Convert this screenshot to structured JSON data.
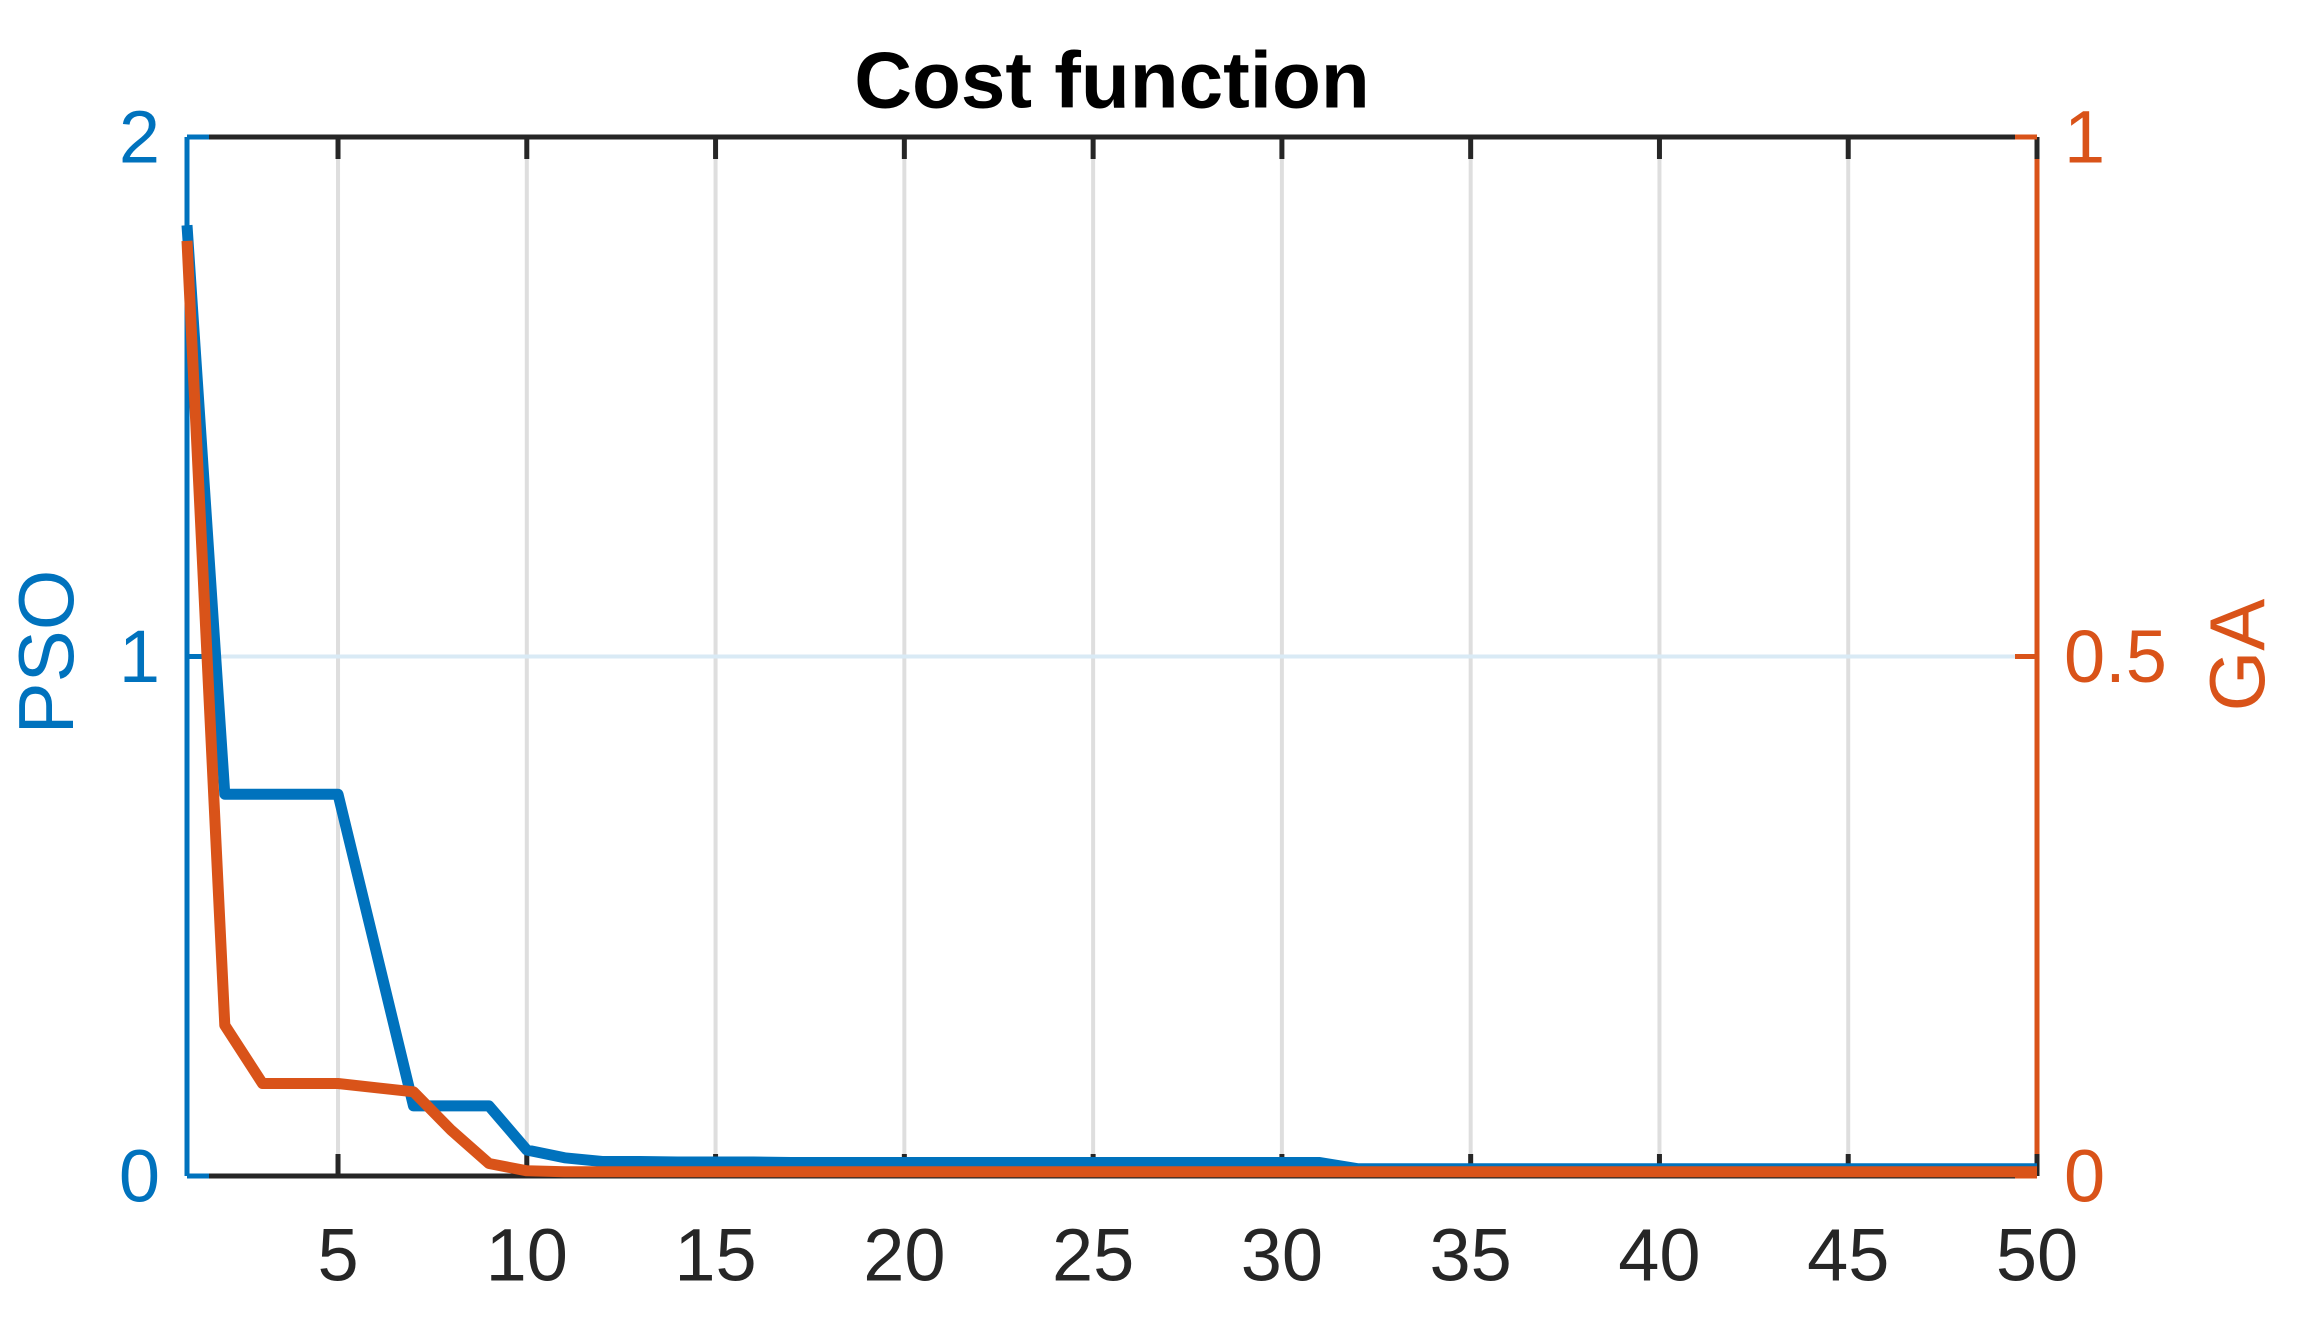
{
  "title": "Cost function",
  "colors": {
    "pso_blue": "#0072BD",
    "ga_orange": "#D95319",
    "axis_dark": "#262626",
    "title_black": "#000000",
    "grid_vertical": "#DEDEDE",
    "grid_horizontal": "#D9EAF5",
    "background": "#FFFFFF"
  },
  "left_axis": {
    "label": "PSO",
    "tick_values": [
      0,
      1,
      2
    ],
    "tick_labels": [
      "0",
      "1",
      "2"
    ],
    "grid_values": [
      1
    ],
    "range": [
      0,
      2
    ]
  },
  "right_axis": {
    "label": "GA",
    "tick_values": [
      0,
      0.5,
      1
    ],
    "tick_labels": [
      "0",
      "0.5",
      "1"
    ],
    "range": [
      0,
      1
    ]
  },
  "x_axis": {
    "tick_values": [
      5,
      10,
      15,
      20,
      25,
      30,
      35,
      40,
      45,
      50
    ],
    "tick_labels": [
      "5",
      "10",
      "15",
      "20",
      "25",
      "30",
      "35",
      "40",
      "45",
      "50"
    ],
    "range": [
      1,
      50
    ]
  },
  "chart_data": {
    "type": "line",
    "title": "Cost function",
    "xlabel": "",
    "x": [
      1,
      2,
      3,
      4,
      5,
      6,
      7,
      8,
      9,
      10,
      11,
      12,
      13,
      14,
      15,
      16,
      17,
      18,
      19,
      20,
      21,
      22,
      23,
      24,
      25,
      26,
      27,
      28,
      29,
      30,
      31,
      32,
      33,
      34,
      35,
      36,
      37,
      38,
      39,
      40,
      41,
      42,
      43,
      44,
      45,
      46,
      47,
      48,
      49,
      50
    ],
    "xlim": [
      1,
      50
    ],
    "grid": true,
    "legend_position": "none",
    "series": [
      {
        "name": "PSO",
        "axis": "left",
        "ylim": [
          0,
          2
        ],
        "color": "#0072BD",
        "values": [
          1.83,
          0.735,
          0.735,
          0.735,
          0.735,
          0.435,
          0.135,
          0.135,
          0.135,
          0.05,
          0.035,
          0.028,
          0.028,
          0.027,
          0.027,
          0.027,
          0.026,
          0.026,
          0.026,
          0.026,
          0.026,
          0.026,
          0.026,
          0.026,
          0.026,
          0.026,
          0.026,
          0.026,
          0.026,
          0.026,
          0.026,
          0.014,
          0.014,
          0.014,
          0.014,
          0.014,
          0.014,
          0.014,
          0.014,
          0.014,
          0.014,
          0.014,
          0.014,
          0.014,
          0.014,
          0.014,
          0.014,
          0.014,
          0.014,
          0.014
        ]
      },
      {
        "name": "GA",
        "axis": "right",
        "ylim": [
          0,
          1
        ],
        "color": "#D95319",
        "values": [
          0.9,
          0.145,
          0.089,
          0.089,
          0.089,
          0.085,
          0.081,
          0.044,
          0.012,
          0.005,
          0.004,
          0.004,
          0.004,
          0.004,
          0.004,
          0.004,
          0.004,
          0.004,
          0.004,
          0.004,
          0.004,
          0.004,
          0.004,
          0.004,
          0.004,
          0.004,
          0.004,
          0.004,
          0.004,
          0.004,
          0.004,
          0.004,
          0.004,
          0.004,
          0.004,
          0.004,
          0.004,
          0.004,
          0.004,
          0.004,
          0.004,
          0.004,
          0.004,
          0.004,
          0.004,
          0.004,
          0.004,
          0.004,
          0.004,
          0.004
        ]
      }
    ]
  }
}
